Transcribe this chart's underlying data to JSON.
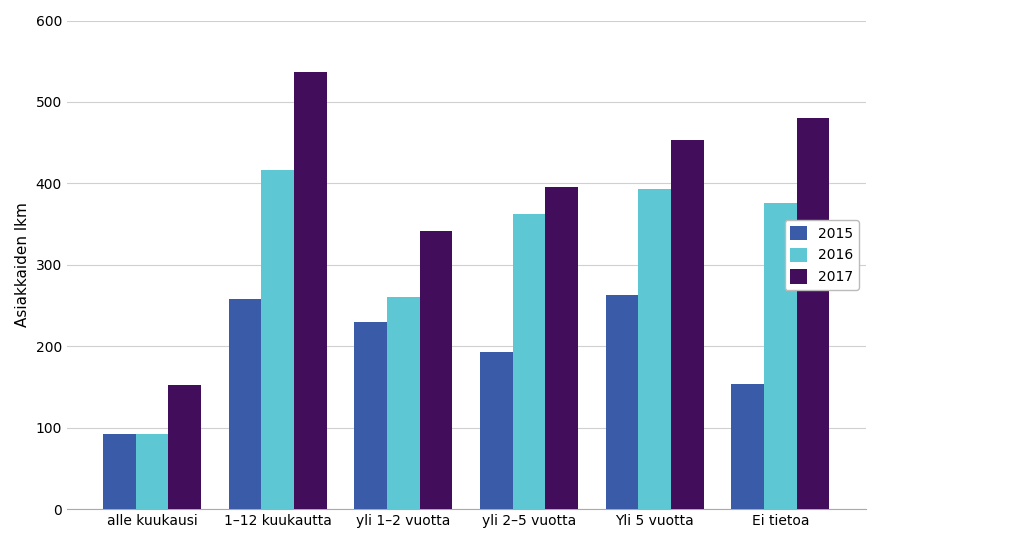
{
  "categories": [
    "alle kuukausi",
    "1–12 kuukautta",
    "yli 1–2 vuotta",
    "yli 2–5 vuotta",
    "Yli 5 vuotta",
    "Ei tietoa"
  ],
  "series": {
    "2015": [
      92,
      258,
      230,
      193,
      263,
      154
    ],
    "2016": [
      92,
      416,
      261,
      363,
      393,
      376
    ],
    "2017": [
      153,
      537,
      342,
      395,
      453,
      480
    ]
  },
  "colors": {
    "2015": "#3A5CA8",
    "2016": "#5DC8D4",
    "2017": "#420E5C"
  },
  "ylabel": "Asiakkaiden lkm",
  "ylim": [
    0,
    600
  ],
  "yticks": [
    0,
    100,
    200,
    300,
    400,
    500,
    600
  ],
  "legend_labels": [
    "2015",
    "2016",
    "2017"
  ],
  "bar_width": 0.26,
  "background_color": "#ffffff",
  "grid_color": "#d0d0d0",
  "title": ""
}
